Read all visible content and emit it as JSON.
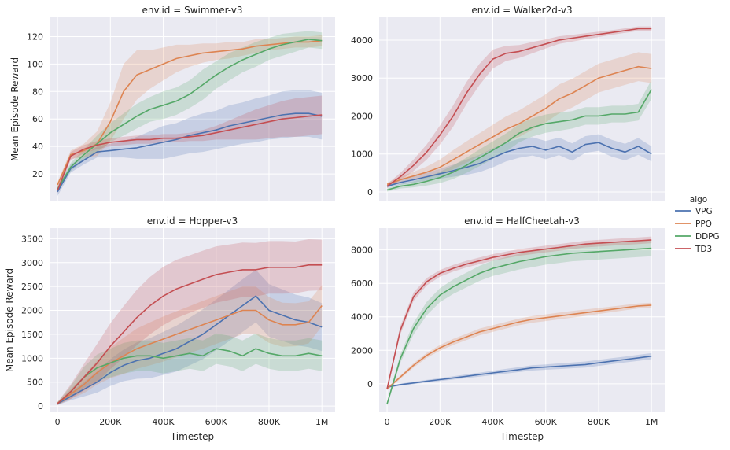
{
  "figure": {
    "xlabel": "Timestep",
    "ylabel": "Mean Episode Reward",
    "legend_title": "algo"
  },
  "colors": {
    "VPG": "#4c72b0",
    "PPO": "#dd8452",
    "DDPG": "#55a868",
    "TD3": "#c44e52",
    "panel_bg": "#eaeaf2",
    "grid": "#ffffff"
  },
  "chart_data": [
    {
      "type": "line",
      "title": "env.id = Swimmer-v3",
      "xlabel": "",
      "ylabel": "Mean Episode Reward",
      "x_ticks": [
        0,
        200000,
        400000,
        600000,
        800000,
        1000000
      ],
      "x_tick_labels": [
        "0",
        "200K",
        "400K",
        "600K",
        "800K",
        "1M"
      ],
      "y_ticks": [
        20,
        40,
        60,
        80,
        100,
        120
      ],
      "y_tick_labels": [
        "20",
        "40",
        "60",
        "80",
        "100",
        "120"
      ],
      "xlim": [
        -30000,
        1050000
      ],
      "ylim": [
        0,
        134
      ],
      "x": [
        0,
        50000,
        100000,
        150000,
        200000,
        250000,
        300000,
        350000,
        400000,
        450000,
        500000,
        550000,
        600000,
        650000,
        700000,
        750000,
        800000,
        850000,
        900000,
        950000,
        1000000
      ],
      "series": [
        {
          "name": "VPG",
          "values": [
            7,
            24,
            30,
            36,
            37,
            38,
            39,
            41,
            43,
            45,
            48,
            50,
            52,
            55,
            57,
            59,
            61,
            63,
            64,
            64,
            62
          ],
          "band": [
            3,
            3,
            3,
            4,
            5,
            6,
            8,
            10,
            12,
            12,
            13,
            14,
            14,
            15,
            15,
            16,
            16,
            17,
            17,
            17,
            17
          ]
        },
        {
          "name": "PPO",
          "values": [
            12,
            34,
            37,
            42,
            58,
            80,
            92,
            96,
            100,
            104,
            106,
            108,
            109,
            110,
            111,
            113,
            114,
            115,
            116,
            116,
            117
          ],
          "band": [
            2,
            3,
            5,
            9,
            14,
            20,
            18,
            14,
            12,
            10,
            8,
            7,
            6,
            6,
            5,
            5,
            4,
            4,
            4,
            4,
            4
          ]
        },
        {
          "name": "DDPG",
          "values": [
            9,
            25,
            34,
            42,
            50,
            56,
            62,
            67,
            70,
            73,
            78,
            85,
            92,
            98,
            103,
            107,
            111,
            114,
            116,
            118,
            117
          ],
          "band": [
            2,
            3,
            4,
            6,
            7,
            8,
            9,
            9,
            10,
            10,
            10,
            11,
            10,
            10,
            9,
            9,
            8,
            8,
            7,
            6,
            6
          ]
        },
        {
          "name": "TD3",
          "values": [
            8,
            33,
            38,
            41,
            43,
            44,
            45,
            45,
            46,
            46,
            47,
            48,
            50,
            52,
            54,
            56,
            58,
            60,
            61,
            62,
            63
          ],
          "band": [
            2,
            3,
            3,
            3,
            3,
            3,
            3,
            3,
            3,
            3,
            3,
            4,
            5,
            7,
            9,
            11,
            12,
            13,
            14,
            14,
            14
          ]
        }
      ]
    },
    {
      "type": "line",
      "title": "env.id = Walker2d-v3",
      "xlabel": "",
      "ylabel": "",
      "x_ticks": [
        0,
        200000,
        400000,
        600000,
        800000,
        1000000
      ],
      "x_tick_labels": [
        "0",
        "200K",
        "400K",
        "600K",
        "800K",
        "1M"
      ],
      "y_ticks": [
        0,
        1000,
        2000,
        3000,
        4000
      ],
      "y_tick_labels": [
        "0",
        "1000",
        "2000",
        "3000",
        "4000"
      ],
      "xlim": [
        -30000,
        1050000
      ],
      "ylim": [
        -250,
        4600
      ],
      "x": [
        0,
        50000,
        100000,
        150000,
        200000,
        250000,
        300000,
        350000,
        400000,
        450000,
        500000,
        550000,
        600000,
        650000,
        700000,
        750000,
        800000,
        850000,
        900000,
        950000,
        1000000
      ],
      "series": [
        {
          "name": "VPG",
          "values": [
            150,
            250,
            320,
            400,
            480,
            560,
            650,
            750,
            900,
            1050,
            1150,
            1200,
            1100,
            1200,
            1050,
            1250,
            1300,
            1150,
            1050,
            1200,
            1000
          ],
          "band": [
            40,
            60,
            80,
            100,
            130,
            160,
            200,
            230,
            250,
            250,
            250,
            240,
            240,
            230,
            230,
            220,
            220,
            220,
            220,
            220,
            200
          ]
        },
        {
          "name": "PPO",
          "values": [
            200,
            320,
            420,
            520,
            650,
            850,
            1050,
            1250,
            1450,
            1650,
            1800,
            2000,
            2200,
            2450,
            2600,
            2800,
            3000,
            3100,
            3200,
            3300,
            3250
          ],
          "band": [
            40,
            80,
            110,
            150,
            200,
            250,
            280,
            300,
            320,
            340,
            350,
            360,
            370,
            380,
            380,
            380,
            380,
            380,
            380,
            380,
            380
          ]
        },
        {
          "name": "DDPG",
          "values": [
            50,
            150,
            200,
            280,
            380,
            520,
            700,
            900,
            1100,
            1300,
            1550,
            1700,
            1800,
            1850,
            1900,
            2000,
            2000,
            2050,
            2050,
            2100,
            2700
          ],
          "band": [
            40,
            60,
            80,
            110,
            150,
            180,
            200,
            220,
            230,
            240,
            240,
            240,
            240,
            240,
            230,
            230,
            230,
            220,
            220,
            220,
            250
          ]
        },
        {
          "name": "TD3",
          "values": [
            150,
            400,
            700,
            1050,
            1500,
            2000,
            2600,
            3100,
            3500,
            3650,
            3700,
            3800,
            3900,
            4000,
            4050,
            4100,
            4150,
            4200,
            4250,
            4300,
            4300
          ],
          "band": [
            50,
            100,
            150,
            200,
            250,
            280,
            290,
            280,
            250,
            200,
            170,
            150,
            120,
            100,
            90,
            80,
            70,
            60,
            60,
            60,
            60
          ]
        }
      ]
    },
    {
      "type": "line",
      "title": "env.id = Hopper-v3",
      "xlabel": "Timestep",
      "ylabel": "Mean Episode Reward",
      "x_ticks": [
        0,
        200000,
        400000,
        600000,
        800000,
        1000000
      ],
      "x_tick_labels": [
        "0",
        "200K",
        "400K",
        "600K",
        "800K",
        "1M"
      ],
      "y_ticks": [
        0,
        500,
        1000,
        1500,
        2000,
        2500,
        3000,
        3500
      ],
      "y_tick_labels": [
        "0",
        "500",
        "1000",
        "1500",
        "2000",
        "2500",
        "3000",
        "3500"
      ],
      "xlim": [
        -30000,
        1050000
      ],
      "ylim": [
        -130,
        3720
      ],
      "x": [
        0,
        50000,
        100000,
        150000,
        200000,
        250000,
        300000,
        350000,
        400000,
        450000,
        500000,
        550000,
        600000,
        650000,
        700000,
        750000,
        800000,
        850000,
        900000,
        950000,
        1000000
      ],
      "series": [
        {
          "name": "VPG",
          "values": [
            50,
            200,
            350,
            500,
            700,
            850,
            950,
            1000,
            1100,
            1200,
            1350,
            1500,
            1700,
            1900,
            2100,
            2300,
            2000,
            1900,
            1800,
            1750,
            1650
          ],
          "band": [
            30,
            80,
            150,
            220,
            280,
            330,
            380,
            420,
            450,
            480,
            500,
            520,
            530,
            540,
            550,
            550,
            550,
            540,
            530,
            520,
            500
          ]
        },
        {
          "name": "PPO",
          "values": [
            60,
            250,
            450,
            700,
            900,
            1050,
            1200,
            1300,
            1400,
            1500,
            1600,
            1700,
            1800,
            1900,
            2000,
            2000,
            1800,
            1700,
            1700,
            1750,
            2100
          ],
          "band": [
            30,
            100,
            180,
            250,
            320,
            380,
            420,
            450,
            470,
            480,
            490,
            500,
            500,
            500,
            500,
            500,
            480,
            460,
            450,
            440,
            430
          ]
        },
        {
          "name": "DDPG",
          "values": [
            50,
            300,
            600,
            800,
            900,
            1000,
            1050,
            1050,
            1000,
            1050,
            1100,
            1050,
            1200,
            1150,
            1050,
            1200,
            1100,
            1050,
            1050,
            1100,
            1050
          ],
          "band": [
            30,
            120,
            220,
            280,
            300,
            320,
            320,
            320,
            320,
            320,
            320,
            320,
            320,
            320,
            320,
            320,
            320,
            320,
            320,
            320,
            320
          ]
        },
        {
          "name": "TD3",
          "values": [
            50,
            300,
            600,
            900,
            1250,
            1550,
            1850,
            2100,
            2300,
            2450,
            2550,
            2650,
            2750,
            2800,
            2850,
            2850,
            2900,
            2900,
            2900,
            2950,
            2950
          ],
          "band": [
            30,
            150,
            280,
            400,
            480,
            540,
            580,
            600,
            610,
            610,
            600,
            600,
            590,
            580,
            570,
            560,
            550,
            550,
            540,
            540,
            530
          ]
        }
      ]
    },
    {
      "type": "line",
      "title": "env.id = HalfCheetah-v3",
      "xlabel": "Timestep",
      "ylabel": "",
      "x_ticks": [
        0,
        200000,
        400000,
        600000,
        800000,
        1000000
      ],
      "x_tick_labels": [
        "0",
        "200K",
        "400K",
        "600K",
        "800K",
        "1M"
      ],
      "y_ticks": [
        0,
        2000,
        4000,
        6000,
        8000
      ],
      "y_tick_labels": [
        "0",
        "2000",
        "4000",
        "6000",
        "8000"
      ],
      "xlim": [
        -30000,
        1050000
      ],
      "ylim": [
        -1700,
        9300
      ],
      "x": [
        0,
        50000,
        100000,
        150000,
        200000,
        250000,
        300000,
        350000,
        400000,
        450000,
        500000,
        550000,
        600000,
        650000,
        700000,
        750000,
        800000,
        850000,
        900000,
        950000,
        1000000
      ],
      "series": [
        {
          "name": "VPG",
          "values": [
            -200,
            -50,
            50,
            150,
            250,
            350,
            450,
            550,
            650,
            750,
            850,
            950,
            1000,
            1050,
            1100,
            1150,
            1250,
            1350,
            1450,
            1550,
            1650
          ],
          "band": [
            50,
            60,
            70,
            80,
            90,
            100,
            110,
            120,
            130,
            140,
            150,
            160,
            160,
            170,
            170,
            180,
            180,
            180,
            180,
            180,
            180
          ]
        },
        {
          "name": "PPO",
          "values": [
            -300,
            400,
            1100,
            1700,
            2150,
            2500,
            2800,
            3100,
            3300,
            3500,
            3700,
            3850,
            3950,
            4050,
            4150,
            4250,
            4350,
            4450,
            4550,
            4650,
            4700
          ],
          "band": [
            80,
            100,
            130,
            150,
            170,
            180,
            190,
            200,
            200,
            200,
            200,
            200,
            200,
            200,
            200,
            190,
            180,
            170,
            160,
            150,
            150
          ]
        },
        {
          "name": "DDPG",
          "values": [
            -1200,
            1500,
            3300,
            4500,
            5300,
            5800,
            6200,
            6600,
            6900,
            7100,
            7300,
            7450,
            7600,
            7700,
            7800,
            7850,
            7900,
            7950,
            8000,
            8050,
            8100
          ],
          "band": [
            120,
            250,
            350,
            400,
            420,
            430,
            440,
            450,
            460,
            470,
            470,
            480,
            480,
            480,
            480,
            480,
            480,
            480,
            480,
            480,
            480
          ]
        },
        {
          "name": "TD3",
          "values": [
            -300,
            3200,
            5200,
            6100,
            6600,
            6900,
            7150,
            7350,
            7550,
            7700,
            7850,
            7950,
            8050,
            8150,
            8250,
            8350,
            8400,
            8450,
            8500,
            8550,
            8600
          ],
          "band": [
            100,
            250,
            250,
            220,
            200,
            200,
            200,
            200,
            200,
            200,
            200,
            200,
            200,
            200,
            200,
            200,
            200,
            200,
            200,
            200,
            200
          ]
        }
      ]
    }
  ]
}
